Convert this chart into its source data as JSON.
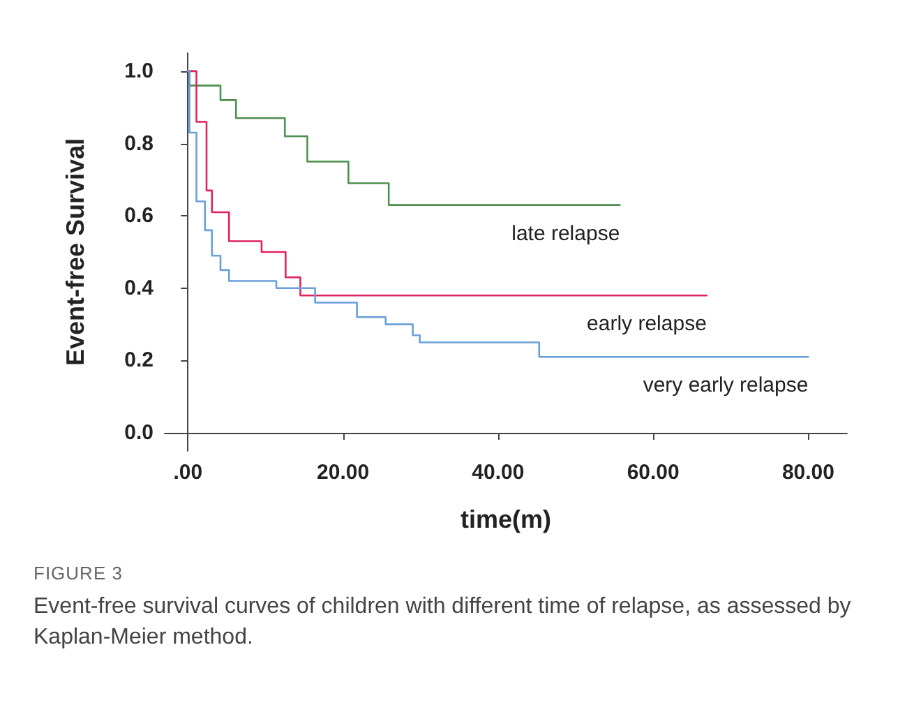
{
  "chart_data": {
    "type": "step",
    "xlabel": "time(m)",
    "ylabel": "Event-free Survival",
    "xlim": [
      -3,
      85
    ],
    "ylim": [
      -0.05,
      1.05
    ],
    "xticks": [
      {
        "value": 0,
        "label": ".00"
      },
      {
        "value": 20,
        "label": "20.00"
      },
      {
        "value": 40,
        "label": "40.00"
      },
      {
        "value": 60,
        "label": "60.00"
      },
      {
        "value": 80,
        "label": "80.00"
      }
    ],
    "yticks": [
      {
        "value": 0,
        "label": "0.0"
      },
      {
        "value": 0.2,
        "label": "0.2"
      },
      {
        "value": 0.4,
        "label": "0.4"
      },
      {
        "value": 0.6,
        "label": "0.6"
      },
      {
        "value": 0.8,
        "label": "0.8"
      },
      {
        "value": 1,
        "label": "1.0"
      }
    ],
    "grid": false,
    "legend": false,
    "series": [
      {
        "name": "late relapse",
        "color": "#4f8f4f",
        "x": [
          0,
          0.2,
          4.2,
          6.2,
          12.5,
          15.4,
          20.7,
          25.9,
          55.7
        ],
        "values": [
          1,
          0.96,
          0.92,
          0.87,
          0.82,
          0.75,
          0.69,
          0.63,
          0.63
        ]
      },
      {
        "name": "early relapse",
        "color": "#e0245e",
        "x": [
          0,
          1.1,
          2.4,
          3.1,
          5.3,
          9.5,
          12.6,
          14.5,
          66.9
        ],
        "values": [
          1,
          0.86,
          0.67,
          0.61,
          0.53,
          0.5,
          0.43,
          0.38,
          0.38
        ]
      },
      {
        "name": "very early relapse",
        "color": "#6a9fd8",
        "x": [
          0,
          0.2,
          1.1,
          2.2,
          3.1,
          4.2,
          5.3,
          11.4,
          16.4,
          21.8,
          25.5,
          29,
          29.9,
          45.3,
          80
        ],
        "values": [
          1,
          0.83,
          0.64,
          0.56,
          0.49,
          0.45,
          0.42,
          0.4,
          0.36,
          0.32,
          0.3,
          0.27,
          0.25,
          0.21,
          0.21
        ]
      }
    ],
    "annotations": [
      "FIGURE 3",
      "Event-free survival curves of children with different time of relapse, as assessed by Kaplan-Meier method."
    ]
  }
}
